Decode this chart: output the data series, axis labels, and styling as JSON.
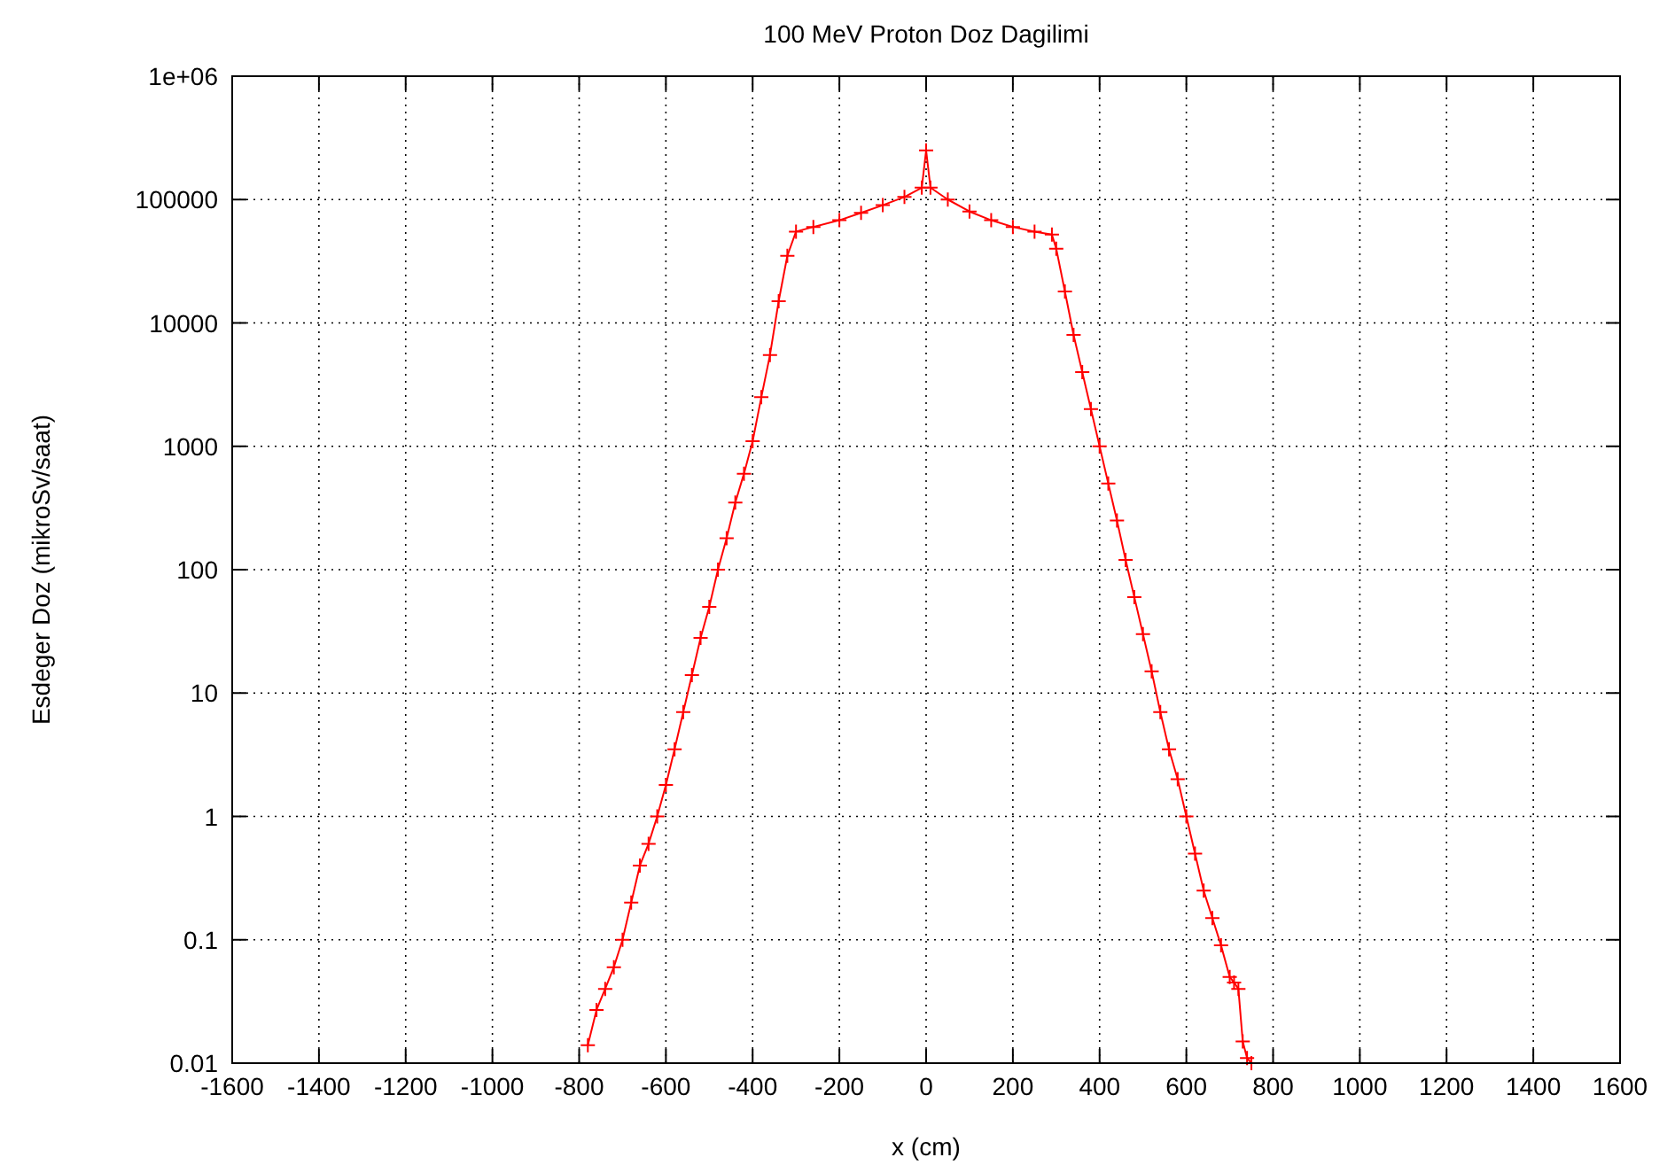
{
  "chart_data": {
    "type": "line",
    "title": "100 MeV Proton Doz Dagilimi",
    "xlabel": "x (cm)",
    "ylabel": "Esdeger Doz (mikroSv/saat)",
    "log": "y",
    "grid": true,
    "marker": "cross",
    "line_style": "solid",
    "xlim": [
      -1600,
      1600
    ],
    "xticks": [
      -1600,
      -1400,
      -1200,
      -1000,
      -800,
      -600,
      -400,
      -200,
      0,
      200,
      400,
      600,
      800,
      1000,
      1200,
      1400,
      1600
    ],
    "ylim": [
      0.01,
      1000000
    ],
    "yticks": [
      0.01,
      0.1,
      1,
      10,
      100,
      1000,
      10000,
      100000,
      {
        "value": 1000000,
        "label": "1e+06"
      }
    ],
    "series": [
      {
        "color": "#ff0000",
        "x": [
          -780,
          -760,
          -740,
          -720,
          -700,
          -680,
          -660,
          -640,
          -620,
          -600,
          -580,
          -560,
          -540,
          -520,
          -500,
          -480,
          -460,
          -440,
          -420,
          -400,
          -380,
          -360,
          -340,
          -320,
          -300,
          -260,
          -200,
          -150,
          -100,
          -50,
          -10,
          0,
          10,
          50,
          100,
          150,
          200,
          250,
          290,
          300,
          320,
          340,
          360,
          380,
          400,
          420,
          440,
          460,
          480,
          500,
          520,
          540,
          560,
          580,
          600,
          620,
          640,
          660,
          680,
          700,
          710,
          720,
          730,
          740,
          750
        ],
        "values": [
          0.014,
          0.027,
          0.04,
          0.06,
          0.1,
          0.2,
          0.4,
          0.6,
          1,
          1.8,
          3.5,
          7,
          14,
          28,
          50,
          100,
          180,
          350,
          600,
          1100,
          2500,
          5500,
          15000,
          35000,
          55000,
          60000,
          68000,
          78000,
          90000,
          105000,
          125000,
          250000,
          125000,
          100000,
          80000,
          68000,
          60000,
          55000,
          52000,
          40000,
          18000,
          8000,
          4000,
          2000,
          1000,
          500,
          250,
          120,
          60,
          30,
          15,
          7,
          3.5,
          2,
          1,
          0.5,
          0.25,
          0.15,
          0.09,
          0.05,
          0.045,
          0.04,
          0.015,
          0.011,
          0.01
        ]
      }
    ]
  }
}
